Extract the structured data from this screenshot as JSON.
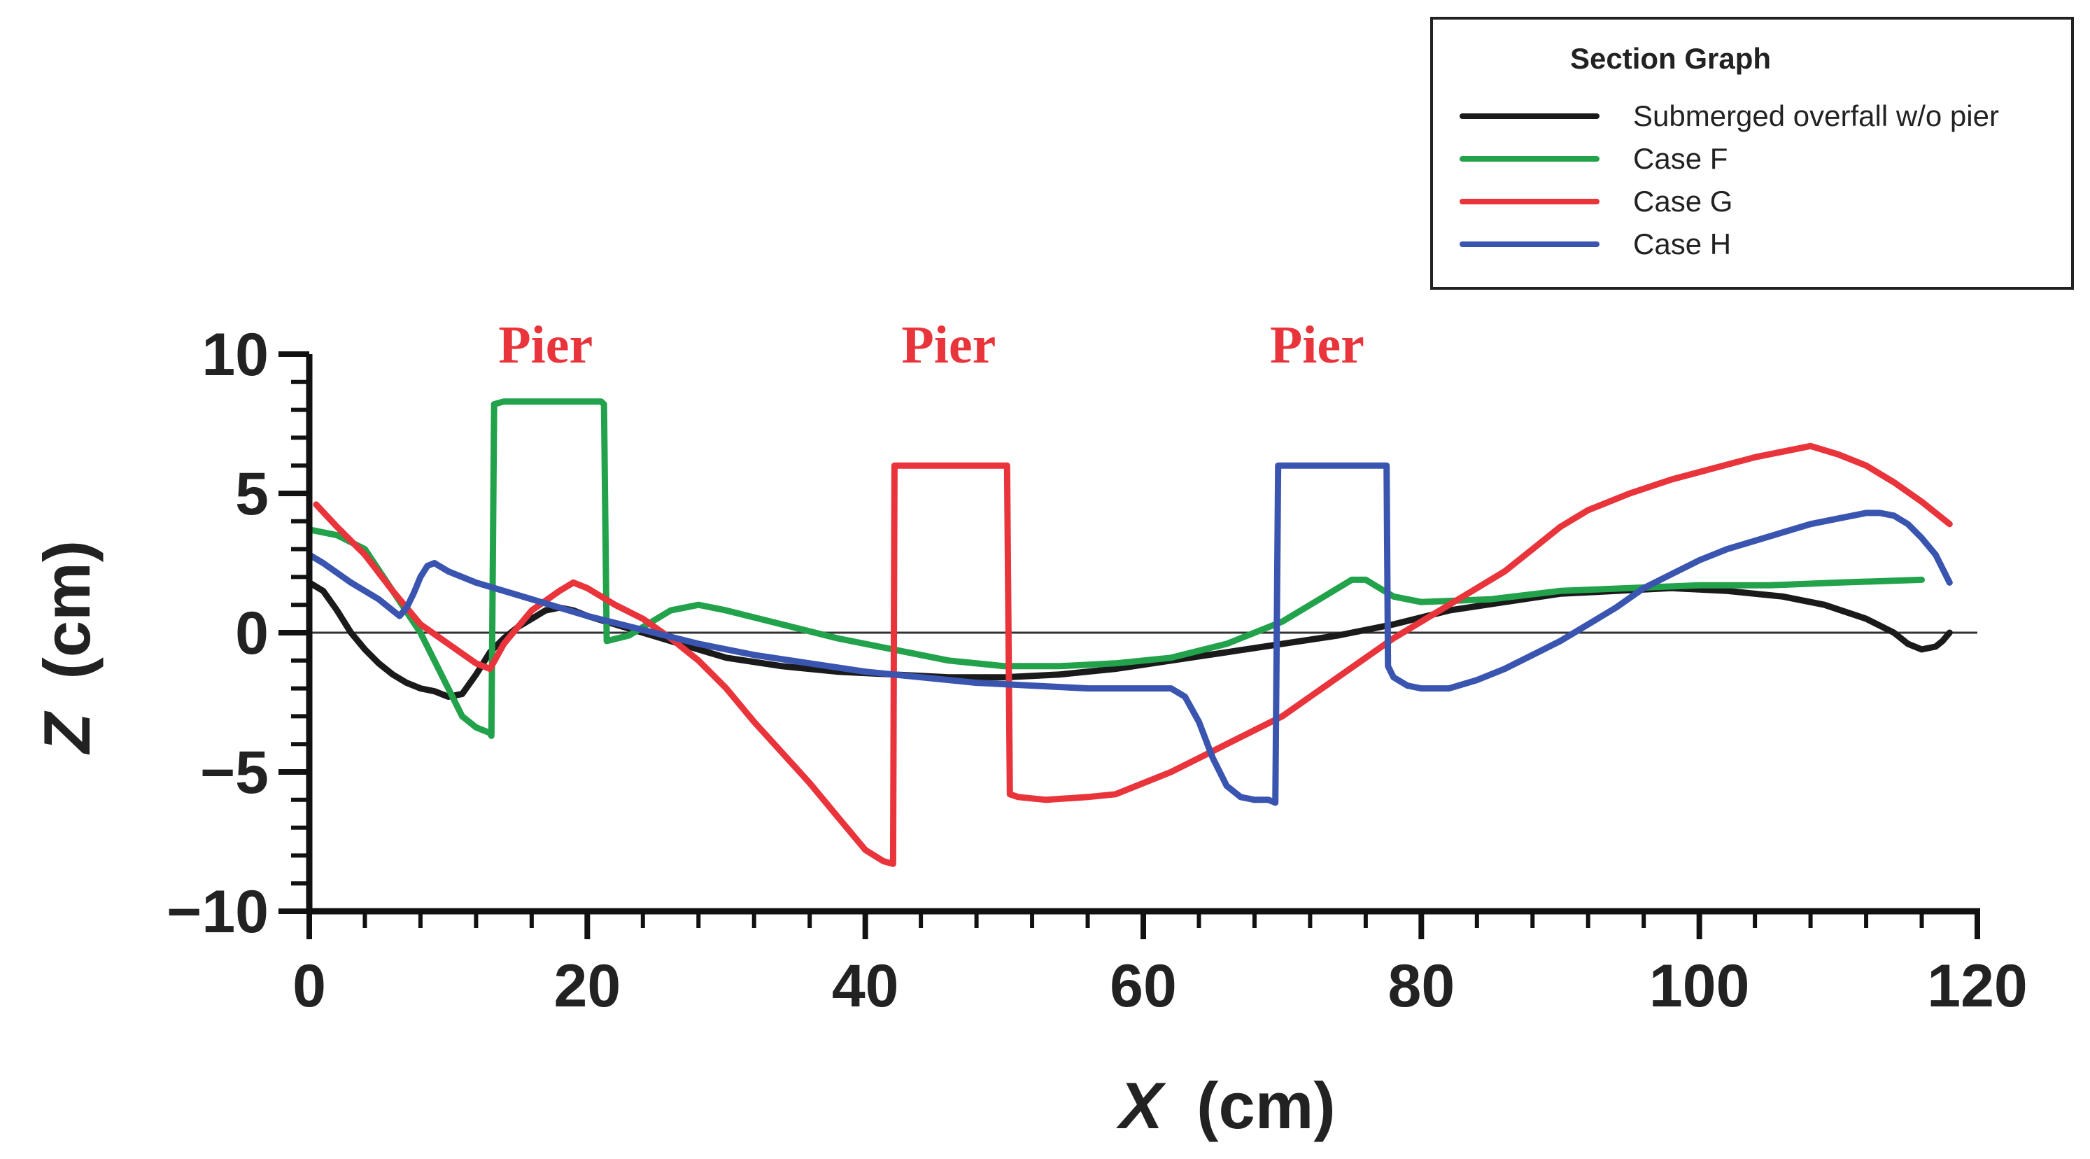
{
  "chart_data": {
    "type": "line",
    "title": "",
    "xlabel_italic": "X",
    "xlabel_unit": "(cm)",
    "ylabel_italic": "Z",
    "ylabel_unit": "(cm)",
    "xlim": [
      0,
      120
    ],
    "ylim": [
      -10,
      10
    ],
    "x_ticks": [
      0,
      20,
      40,
      60,
      80,
      100,
      120
    ],
    "y_ticks": [
      -10,
      -5,
      0,
      5,
      10
    ],
    "y_tick_labels": [
      "−10",
      "−5",
      "0",
      "5",
      "10"
    ],
    "grid": false,
    "legend": {
      "title": "Section Graph",
      "position": "top-right"
    },
    "annotations": [
      {
        "text": "Pier",
        "x": 17,
        "y": 9.7,
        "color": "#e8343a"
      },
      {
        "text": "Pier",
        "x": 46,
        "y": 9.7,
        "color": "#e8343a"
      },
      {
        "text": "Pier",
        "x": 72.5,
        "y": 9.7,
        "color": "#e8343a"
      }
    ],
    "series": [
      {
        "name": "Submerged overfall w/o pier",
        "color": "#1a1a1a",
        "x": [
          0,
          1,
          2,
          3,
          4,
          5,
          6,
          7,
          8,
          9,
          10,
          11,
          12,
          13,
          14,
          15,
          16,
          17,
          18,
          19,
          20,
          22,
          24,
          26,
          28,
          30,
          34,
          38,
          42,
          46,
          50,
          54,
          58,
          62,
          66,
          70,
          74,
          78,
          82,
          86,
          90,
          94,
          98,
          102,
          106,
          109,
          112,
          114,
          115,
          116,
          117,
          117.5,
          118
        ],
        "y": [
          1.8,
          1.5,
          0.8,
          0.0,
          -0.6,
          -1.1,
          -1.5,
          -1.8,
          -2.0,
          -2.1,
          -2.3,
          -2.2,
          -1.5,
          -0.7,
          -0.2,
          0.2,
          0.5,
          0.8,
          0.9,
          0.8,
          0.6,
          0.3,
          0.0,
          -0.3,
          -0.6,
          -0.9,
          -1.2,
          -1.4,
          -1.5,
          -1.6,
          -1.6,
          -1.5,
          -1.3,
          -1.0,
          -0.7,
          -0.4,
          -0.1,
          0.3,
          0.8,
          1.1,
          1.4,
          1.5,
          1.6,
          1.5,
          1.3,
          1.0,
          0.5,
          0.0,
          -0.4,
          -0.6,
          -0.5,
          -0.3,
          0.0
        ]
      },
      {
        "name": "Case F",
        "color": "#22a24a",
        "x": [
          0,
          2,
          4,
          6,
          8,
          10,
          11,
          12,
          13,
          13.1,
          13.3,
          14,
          16,
          18,
          20,
          21,
          21.2,
          21.4,
          23,
          24,
          26,
          28,
          30,
          34,
          38,
          42,
          46,
          50,
          54,
          58,
          62,
          66,
          70,
          73,
          75,
          76,
          77,
          78,
          80,
          85,
          90,
          95,
          100,
          105,
          110,
          116
        ],
        "y": [
          3.7,
          3.5,
          3.0,
          1.5,
          0.0,
          -2.0,
          -3.0,
          -3.4,
          -3.6,
          -3.7,
          8.2,
          8.3,
          8.3,
          8.3,
          8.3,
          8.3,
          8.2,
          -0.3,
          -0.1,
          0.2,
          0.8,
          1.0,
          0.8,
          0.3,
          -0.2,
          -0.6,
          -1.0,
          -1.2,
          -1.2,
          -1.1,
          -0.9,
          -0.4,
          0.4,
          1.3,
          1.9,
          1.9,
          1.6,
          1.3,
          1.1,
          1.2,
          1.5,
          1.6,
          1.7,
          1.7,
          1.8,
          1.9
        ]
      },
      {
        "name": "Case G",
        "color": "#e8343a",
        "x": [
          0.5,
          2,
          4,
          6,
          8,
          10,
          12,
          13,
          14,
          16,
          18,
          19,
          20,
          22,
          24,
          26,
          28,
          30,
          32,
          34,
          36,
          38,
          40,
          41.3,
          42,
          42.1,
          42.2,
          44,
          46,
          48,
          50,
          50.2,
          50.4,
          51,
          53,
          56,
          58,
          60,
          62,
          64,
          66,
          68,
          70,
          72,
          74,
          76,
          78,
          80,
          82,
          84,
          86,
          88,
          90,
          92,
          95,
          98,
          101,
          104,
          107,
          108,
          110,
          112,
          114,
          116,
          118
        ],
        "y": [
          4.6,
          3.8,
          2.8,
          1.5,
          0.3,
          -0.4,
          -1.1,
          -1.3,
          -0.4,
          0.8,
          1.5,
          1.8,
          1.6,
          1.0,
          0.5,
          -0.2,
          -1.0,
          -2.0,
          -3.2,
          -4.3,
          -5.4,
          -6.6,
          -7.8,
          -8.2,
          -8.3,
          6.0,
          6.0,
          6.0,
          6.0,
          6.0,
          6.0,
          6.0,
          -5.8,
          -5.9,
          -6.0,
          -5.9,
          -5.8,
          -5.4,
          -5.0,
          -4.5,
          -4.0,
          -3.5,
          -3.0,
          -2.3,
          -1.6,
          -0.9,
          -0.2,
          0.4,
          1.0,
          1.6,
          2.2,
          3.0,
          3.8,
          4.4,
          5.0,
          5.5,
          5.9,
          6.3,
          6.6,
          6.7,
          6.4,
          6.0,
          5.4,
          4.7,
          3.9
        ]
      },
      {
        "name": "Case H",
        "color": "#3a55b0",
        "x": [
          0,
          1,
          3,
          5,
          6,
          6.5,
          7,
          7.5,
          8,
          8.5,
          9,
          10,
          12,
          14,
          16,
          18,
          20,
          24,
          28,
          32,
          36,
          40,
          44,
          48,
          52,
          56,
          60,
          62,
          63,
          64,
          65,
          66,
          67,
          68,
          69,
          69.5,
          69.7,
          70,
          72,
          74,
          76,
          77.5,
          77.6,
          78,
          79,
          80,
          82,
          84,
          86,
          88,
          90,
          92,
          94,
          96,
          98,
          100,
          102,
          104,
          106,
          108,
          110,
          112,
          113,
          114,
          115,
          116,
          117,
          118
        ],
        "y": [
          2.8,
          2.5,
          1.8,
          1.2,
          0.8,
          0.6,
          0.9,
          1.4,
          2.0,
          2.4,
          2.5,
          2.2,
          1.8,
          1.5,
          1.2,
          0.9,
          0.6,
          0.1,
          -0.4,
          -0.8,
          -1.1,
          -1.4,
          -1.6,
          -1.8,
          -1.9,
          -2.0,
          -2.0,
          -2.0,
          -2.3,
          -3.2,
          -4.5,
          -5.5,
          -5.9,
          -6.0,
          -6.0,
          -6.1,
          6.0,
          6.0,
          6.0,
          6.0,
          6.0,
          6.0,
          -1.2,
          -1.6,
          -1.9,
          -2.0,
          -2.0,
          -1.7,
          -1.3,
          -0.8,
          -0.3,
          0.3,
          0.9,
          1.6,
          2.1,
          2.6,
          3.0,
          3.3,
          3.6,
          3.9,
          4.1,
          4.3,
          4.3,
          4.2,
          3.9,
          3.4,
          2.8,
          1.8
        ]
      }
    ]
  }
}
